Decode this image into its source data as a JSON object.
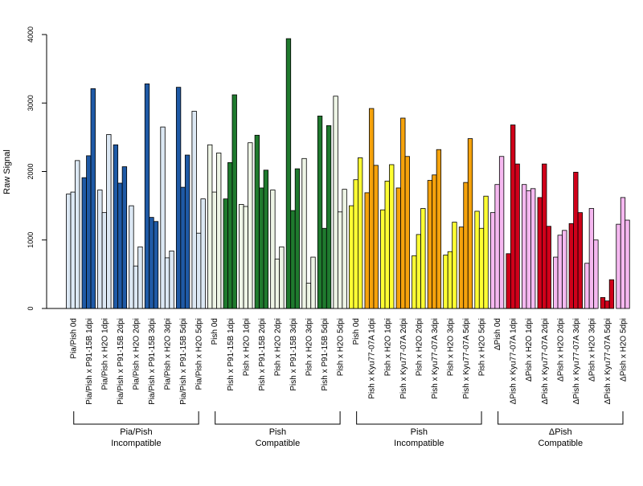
{
  "chart_data": {
    "type": "bar",
    "title": "",
    "xlabel": "",
    "ylabel": "Raw Signal",
    "ylim": [
      0,
      4000
    ],
    "yticks": [
      0,
      1000,
      2000,
      3000,
      4000
    ],
    "grid": false,
    "legend": "none",
    "colors": {
      "pia_light": "#dce8f4",
      "pia_dark": "#1f5aa6",
      "pish_compat_light": "#eef5e6",
      "pish_compat_dark": "#1f7a2e",
      "pish_incompat_light": "#ffff33",
      "pish_incompat_dark": "#f5a20c",
      "dpish_light": "#f5b8f0",
      "dpish_dark": "#d0001a"
    },
    "groups": [
      {
        "categories": [
          {
            "label": "Pia/Pish 0d",
            "values": [
              1670,
              1700,
              2160
            ],
            "color": "pia_light"
          },
          {
            "label": "Pia/Pish x P91-15B 1dpi",
            "values": [
              1910,
              2230,
              3210
            ],
            "color": "pia_dark"
          },
          {
            "label": "Pia/Pish x H2O 1dpi",
            "values": [
              1730,
              1400,
              2540
            ],
            "color": "pia_light"
          },
          {
            "label": "Pia/Pish x P91-15B 2dpi",
            "values": [
              2390,
              1830,
              2070
            ],
            "color": "pia_dark"
          },
          {
            "label": "Pia/Pish x H2O 2dpi",
            "values": [
              1500,
              620,
              900
            ],
            "color": "pia_light"
          },
          {
            "label": "Pia/Pish x P91-15B 3dpi",
            "values": [
              3280,
              1330,
              1270
            ],
            "color": "pia_dark"
          },
          {
            "label": "Pia/Pish x H2O 3dpi",
            "values": [
              2650,
              740,
              840
            ],
            "color": "pia_light"
          },
          {
            "label": "Pia/Pish x P91-15B 5dpi",
            "values": [
              3230,
              1770,
              2240
            ],
            "color": "pia_dark"
          },
          {
            "label": "Pia/Pish x H2O 5dpi",
            "values": [
              2880,
              1100,
              1600
            ],
            "color": "pia_light"
          }
        ]
      },
      {
        "categories": [
          {
            "label": "Pish 0d",
            "values": [
              2390,
              1700,
              2270
            ],
            "color": "pish_compat_light"
          },
          {
            "label": "Pish x P91-15B 1dpi",
            "values": [
              1600,
              2130,
              3120
            ],
            "color": "pish_compat_dark"
          },
          {
            "label": "Pish x H2O 1dpi",
            "values": [
              1520,
              1490,
              2420
            ],
            "color": "pish_compat_light"
          },
          {
            "label": "Pish x P91-15B 2dpi",
            "values": [
              2530,
              1760,
              2020
            ],
            "color": "pish_compat_dark"
          },
          {
            "label": "Pish x H2O 2dpi",
            "values": [
              1730,
              720,
              900
            ],
            "color": "pish_compat_light"
          },
          {
            "label": "Pish x P91-15B 3dpi",
            "values": [
              3940,
              1430,
              2040
            ],
            "color": "pish_compat_dark"
          },
          {
            "label": "Pish x H2O 3dpi",
            "values": [
              2190,
              370,
              750
            ],
            "color": "pish_compat_light"
          },
          {
            "label": "Pish x P91-15B 5dpi",
            "values": [
              2810,
              1170,
              2670
            ],
            "color": "pish_compat_dark"
          },
          {
            "label": "Pish x H2O 5dpi",
            "values": [
              3100,
              1410,
              1740
            ],
            "color": "pish_compat_light"
          }
        ]
      },
      {
        "categories": [
          {
            "label": "Pish 0d",
            "values": [
              1500,
              1880,
              2200
            ],
            "color": "pish_incompat_light"
          },
          {
            "label": "Pish x Kyu77-07A 1dpi",
            "values": [
              1690,
              2920,
              2090
            ],
            "color": "pish_incompat_dark"
          },
          {
            "label": "Pish x H2O 1dpi",
            "values": [
              1440,
              1860,
              2100
            ],
            "color": "pish_incompat_light"
          },
          {
            "label": "Pish x Kyu77-07A 2dpi",
            "values": [
              1760,
              2780,
              2220
            ],
            "color": "pish_incompat_dark"
          },
          {
            "label": "Pish x H2O 2dpi",
            "values": [
              770,
              1080,
              1460
            ],
            "color": "pish_incompat_light"
          },
          {
            "label": "Pish x Kyu77-07A 3dpi",
            "values": [
              1870,
              1950,
              2320
            ],
            "color": "pish_incompat_dark"
          },
          {
            "label": "Pish x H2O 3dpi",
            "values": [
              780,
              830,
              1260
            ],
            "color": "pish_incompat_light"
          },
          {
            "label": "Pish x Kyu77-07A 5dpi",
            "values": [
              1190,
              1840,
              2480
            ],
            "color": "pish_incompat_dark"
          },
          {
            "label": "Pish x H2O 5dpi",
            "values": [
              1420,
              1170,
              1640
            ],
            "color": "pish_incompat_light"
          }
        ]
      },
      {
        "categories": [
          {
            "label": "ΔPish 0d",
            "values": [
              1400,
              1810,
              2220
            ],
            "color": "dpish_light"
          },
          {
            "label": "ΔPish x Kyu77-07A 1dpi",
            "values": [
              800,
              2680,
              2110
            ],
            "color": "dpish_dark"
          },
          {
            "label": "ΔPish x H2O 1dpi",
            "values": [
              1810,
              1720,
              1750
            ],
            "color": "dpish_light"
          },
          {
            "label": "ΔPish x Kyu77-07A 2dpi",
            "values": [
              1620,
              2110,
              1200
            ],
            "color": "dpish_dark"
          },
          {
            "label": "ΔPish x H2O 2dpi",
            "values": [
              750,
              1070,
              1140
            ],
            "color": "dpish_light"
          },
          {
            "label": "ΔPish x Kyu77-07A 3dpi",
            "values": [
              1240,
              1990,
              1400
            ],
            "color": "dpish_dark"
          },
          {
            "label": "ΔPish x H2O 3dpi",
            "values": [
              660,
              1460,
              1000
            ],
            "color": "dpish_light"
          },
          {
            "label": "ΔPish x Kyu77-07A 5dpi",
            "values": [
              160,
              110,
              420
            ],
            "color": "dpish_dark"
          },
          {
            "label": "ΔPish x H2O 5dpi",
            "values": [
              1230,
              1620,
              1290
            ],
            "color": "dpish_light"
          }
        ]
      }
    ],
    "group_labels": [
      [
        "Pia/Pish",
        "Incompatible"
      ],
      [
        "Pish",
        "Compatible"
      ],
      [
        "Pish",
        "Incompatible"
      ],
      [
        "ΔPish",
        "Compatible"
      ]
    ]
  }
}
